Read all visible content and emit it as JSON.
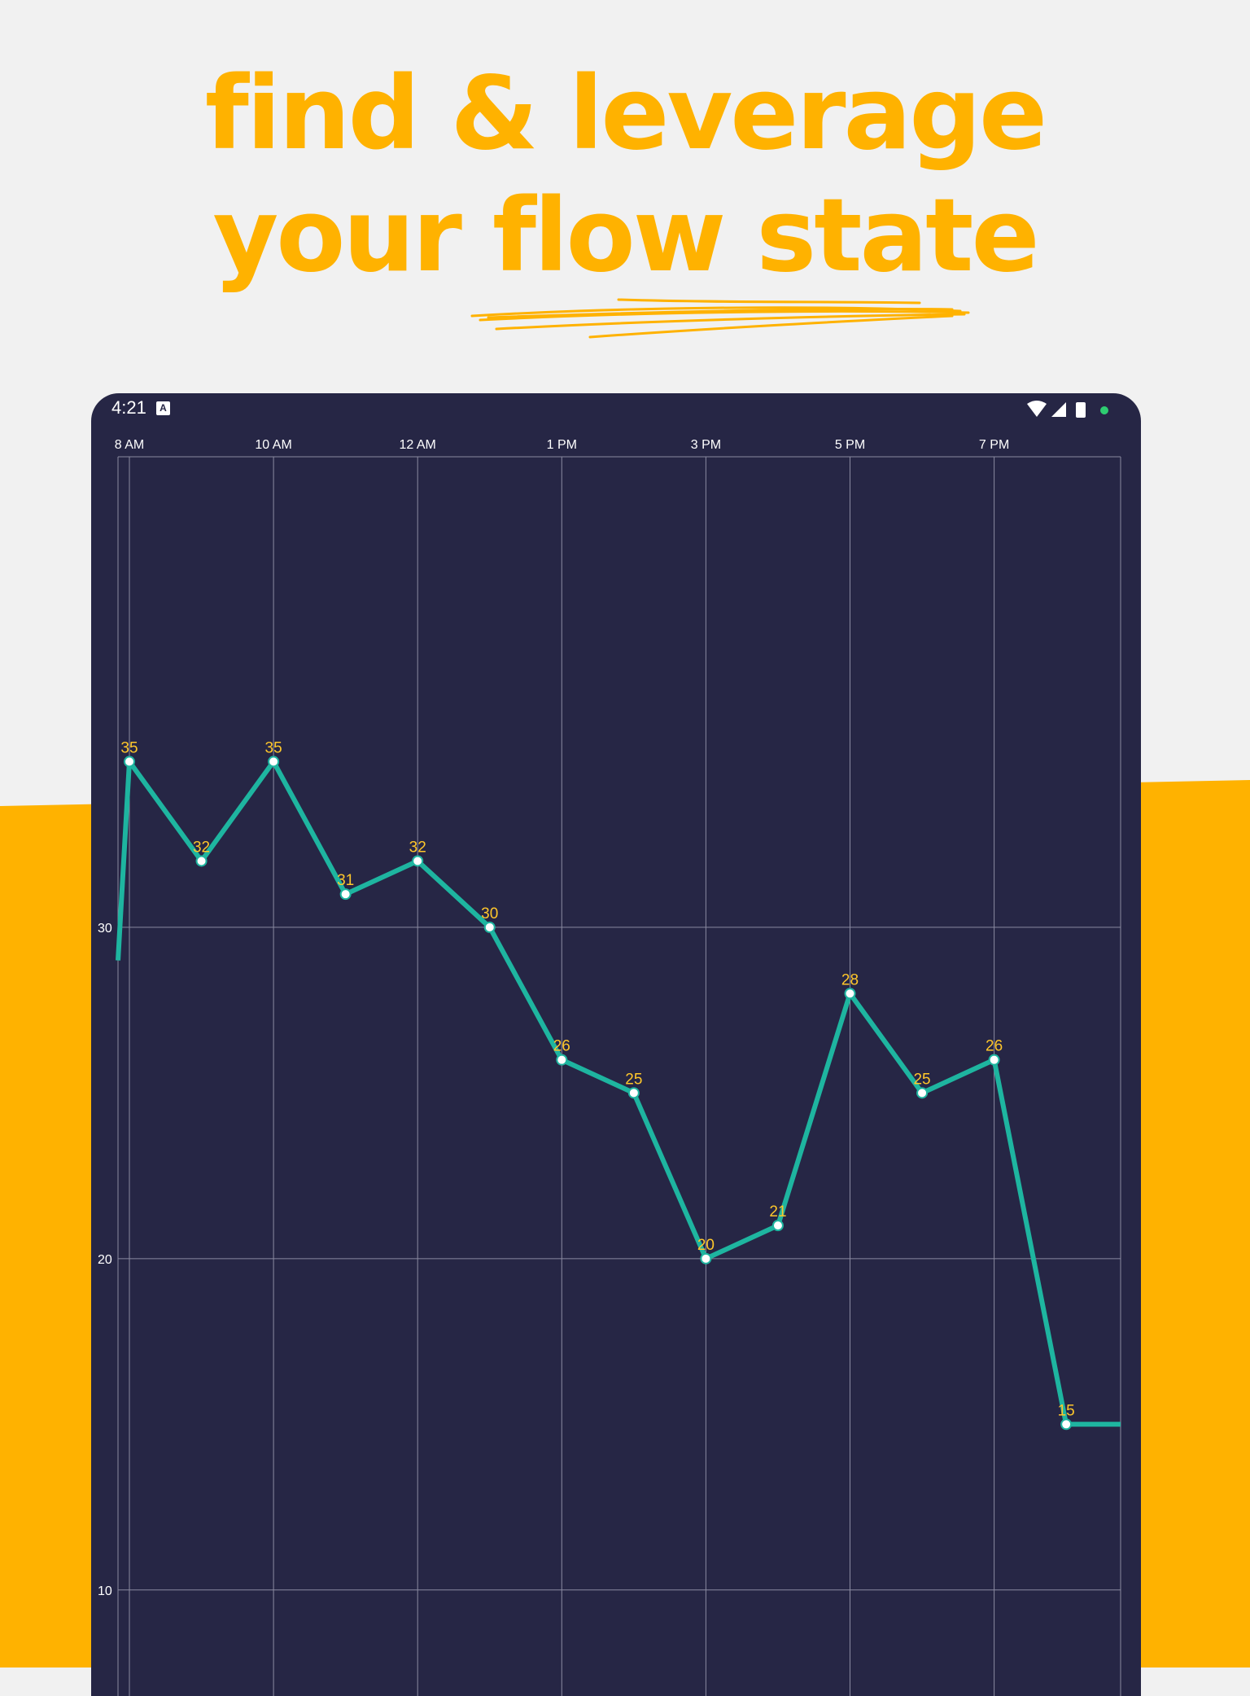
{
  "headline": {
    "line1": "find & leverage",
    "line2": "your flow state"
  },
  "colors": {
    "background": "#f1f1f1",
    "accent": "#ffb200",
    "tablet_bg": "#262645",
    "series": "#1eb5a0",
    "data_label": "#ffc72b",
    "status_dot": "#2ecc71"
  },
  "status_bar": {
    "time": "4:21",
    "notification_icon": "a-badge-icon",
    "icons": [
      "wifi-icon",
      "signal-icon",
      "battery-icon",
      "status-dot-icon"
    ]
  },
  "chart_data": {
    "type": "line",
    "title": "",
    "xlabel": "",
    "ylabel": "",
    "x_tick_labels": [
      "8 AM",
      "10 AM",
      "12 AM",
      "1 PM",
      "3 PM",
      "5 PM",
      "7 PM"
    ],
    "y_ticks": [
      10,
      20,
      30
    ],
    "ylim": [
      6.8,
      44.2
    ],
    "grid": true,
    "legend": "none",
    "series": [
      {
        "points": [
          {
            "x": "8 AM",
            "y": 35
          },
          {
            "x": "",
            "y": 32
          },
          {
            "x": "10 AM",
            "y": 35
          },
          {
            "x": "",
            "y": 31
          },
          {
            "x": "12 AM",
            "y": 32
          },
          {
            "x": "",
            "y": 30
          },
          {
            "x": "1 PM",
            "y": 26
          },
          {
            "x": "",
            "y": 25
          },
          {
            "x": "3 PM",
            "y": 20
          },
          {
            "x": "",
            "y": 21
          },
          {
            "x": "5 PM",
            "y": 28
          },
          {
            "x": "",
            "y": 25
          },
          {
            "x": "7 PM",
            "y": 26
          },
          {
            "x": "",
            "y": 15
          }
        ],
        "entry_value": 29,
        "exit_value": 15
      }
    ]
  }
}
